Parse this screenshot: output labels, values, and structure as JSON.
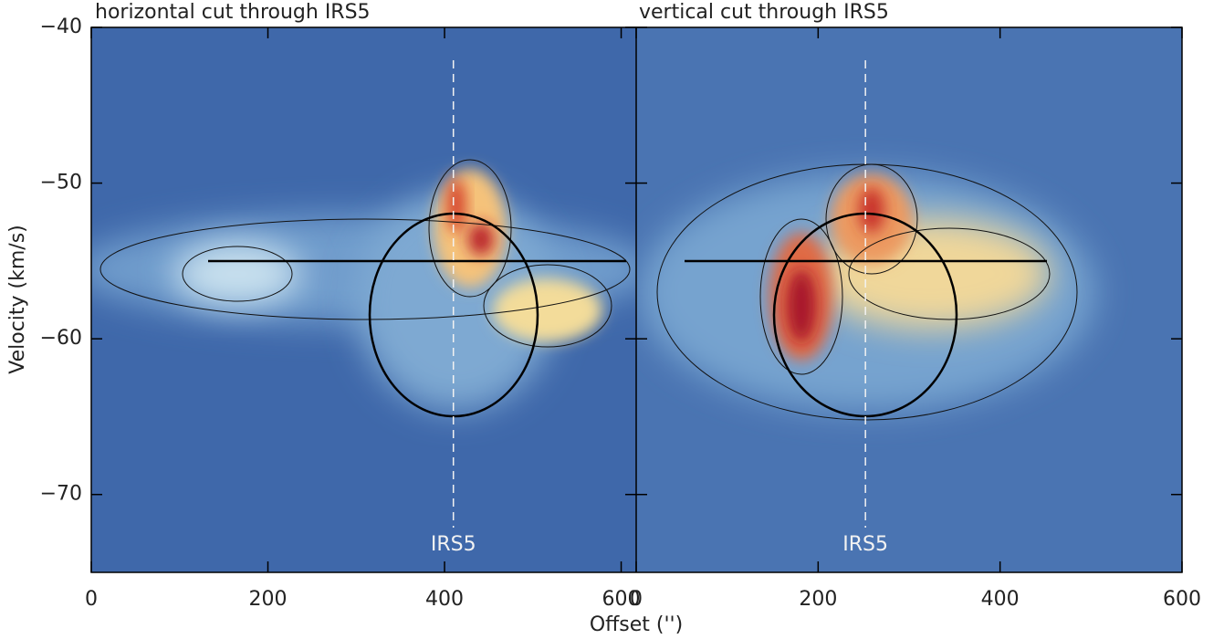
{
  "chart_data": [
    {
      "type": "heatmap",
      "title": "horizontal cut through IRS5",
      "xlabel": "Offset ('')",
      "ylabel": "Velocity (km/s)",
      "xlim": [
        0,
        617
      ],
      "ylim": [
        -75,
        -40
      ],
      "xticks": [
        0,
        200,
        400,
        600
      ],
      "yticks": [
        {
          "value": -40,
          "label": "−40"
        },
        {
          "value": -50,
          "label": "−50"
        },
        {
          "value": -60,
          "label": "−60"
        },
        {
          "value": -70,
          "label": "−70"
        }
      ],
      "reference_line": {
        "x": 410,
        "label": "IRS5"
      }
    },
    {
      "type": "heatmap",
      "title": "vertical cut through IRS5",
      "xlim": [
        0,
        600
      ],
      "ylim": [
        -75,
        -40
      ],
      "xticks": [
        0,
        200,
        400,
        600
      ],
      "reference_line": {
        "x": 252,
        "label": "IRS5"
      }
    }
  ]
}
